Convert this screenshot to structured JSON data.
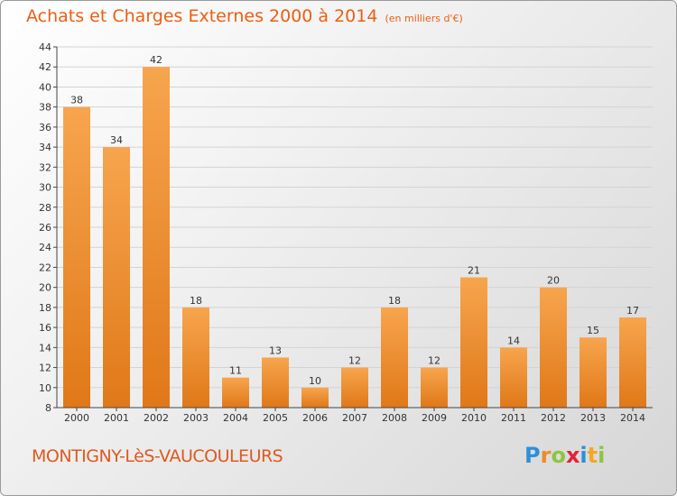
{
  "title": "Achats et Charges Externes 2000 à 2014",
  "unit_note": "(en milliers d'€)",
  "commune": "MONTIGNY-LèS-VAUCOULEURS",
  "logo": {
    "letters": [
      "P",
      "r",
      "o",
      "x",
      "i",
      "t",
      "i"
    ],
    "colors": [
      "#2f8fd8",
      "#f08a24",
      "#8cc63f",
      "#e5203a",
      "#2f8fd8",
      "#f5a623",
      "#8cc63f"
    ]
  },
  "colors": {
    "bar_top": "#f7a54e",
    "bar_bottom": "#e07818",
    "title": "#ee5e10",
    "grid": "#d3d3d3"
  },
  "chart_data": {
    "type": "bar",
    "title": "Achats et Charges Externes 2000 à 2014",
    "subtitle": "(en milliers d'€)",
    "categories": [
      "2000",
      "2001",
      "2002",
      "2003",
      "2004",
      "2005",
      "2006",
      "2007",
      "2008",
      "2009",
      "2010",
      "2011",
      "2012",
      "2013",
      "2014"
    ],
    "values": [
      38,
      34,
      42,
      18,
      11,
      13,
      10,
      12,
      18,
      12,
      21,
      14,
      20,
      15,
      17
    ],
    "ylim": [
      8,
      44
    ],
    "yticks": [
      8,
      10,
      12,
      14,
      16,
      18,
      20,
      22,
      24,
      26,
      28,
      30,
      32,
      34,
      36,
      38,
      40,
      42,
      44
    ],
    "grid": true,
    "xlabel": "",
    "ylabel": ""
  }
}
